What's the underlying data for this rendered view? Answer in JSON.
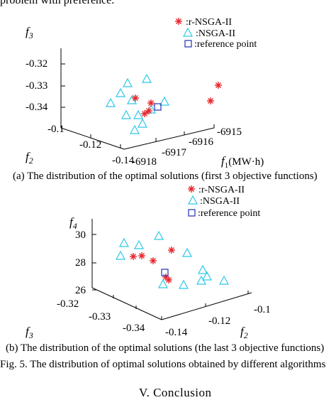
{
  "header": {
    "cut_text": "problem with preference."
  },
  "charts": [
    {
      "type": "scatter",
      "title": "",
      "axes": {
        "z_label": "f3",
        "y_label": "f2",
        "x_label": "f1(MW·h)",
        "z_ticks": [
          "-0.32",
          "-0.33",
          "-0.34"
        ],
        "y_ticks": [
          "-0.1",
          "-0.12",
          "-0.14"
        ],
        "x_ticks": [
          "-6918",
          "-6917",
          "-6916",
          "-6915"
        ]
      },
      "legend": {
        "placement": "top-right",
        "items": [
          ":r-NSGA-II",
          ":NSGA-II",
          ":reference point"
        ]
      },
      "caption": "(a) The distribution of the optimal solutions (first 3 objective functions)"
    },
    {
      "type": "scatter",
      "title": "",
      "axes": {
        "z_label": "f4",
        "y_label": "f3",
        "x_label": "f2",
        "z_ticks": [
          "30",
          "28",
          "26"
        ],
        "y_ticks": [
          "-0.32",
          "-0.33",
          "-0.34"
        ],
        "x_ticks": [
          "-0.14",
          "-0.12",
          "-0.1"
        ]
      },
      "legend": {
        "placement": "top-right",
        "items": [
          ":r-NSGA-II",
          ":NSGA-II",
          ":reference point"
        ]
      },
      "caption": "(b) The distribution of the optimal solutions (the last 3 objective functions)"
    }
  ],
  "figure_caption": "Fig. 5.   The distribution of optimal solutions obtained by different algorithms",
  "section_heading": "V.   Conclusion",
  "colors": {
    "rnsga": "#e8242a",
    "nsga": "#2ec8e6",
    "ref": "#1f2fb4"
  }
}
